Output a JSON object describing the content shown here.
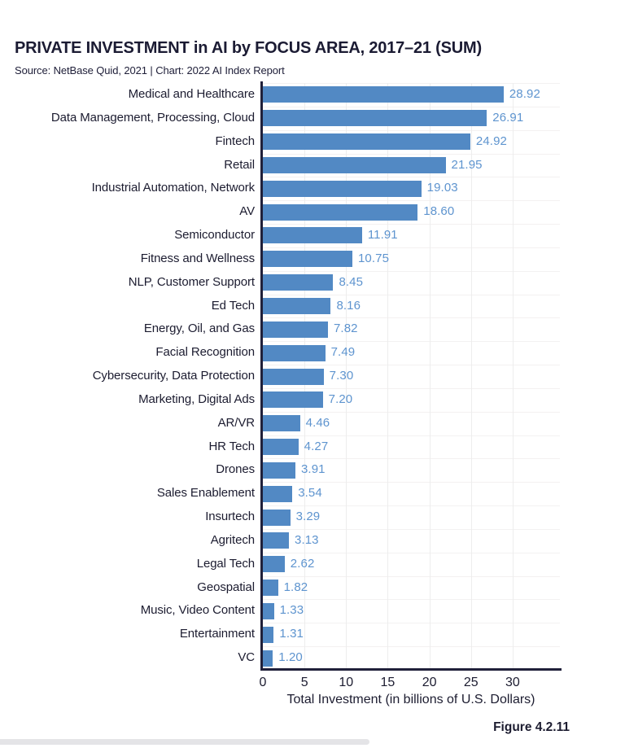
{
  "chart": {
    "title": "PRIVATE INVESTMENT in AI by FOCUS AREA, 2017–21 (SUM)",
    "source_line": "Source: NetBase Quid, 2021 | Chart: 2022 AI Index Report",
    "figure_label": "Figure 4.2.11"
  },
  "chart_data": {
    "type": "bar",
    "orientation": "horizontal",
    "title": "PRIVATE INVESTMENT in AI by FOCUS AREA, 2017–21 (SUM)",
    "categories": [
      "Medical and Healthcare",
      "Data Management, Processing, Cloud",
      "Fintech",
      "Retail",
      "Industrial Automation, Network",
      "AV",
      "Semiconductor",
      "Fitness and Wellness",
      "NLP, Customer Support",
      "Ed Tech",
      "Energy, Oil, and Gas",
      "Facial Recognition",
      "Cybersecurity, Data Protection",
      "Marketing, Digital Ads",
      "AR/VR",
      "HR Tech",
      "Drones",
      "Sales Enablement",
      "Insurtech",
      "Agritech",
      "Legal Tech",
      "Geospatial",
      "Music, Video Content",
      "Entertainment",
      "VC"
    ],
    "values": [
      28.92,
      26.91,
      24.92,
      21.95,
      19.03,
      18.6,
      11.91,
      10.75,
      8.45,
      8.16,
      7.82,
      7.49,
      7.3,
      7.2,
      4.46,
      4.27,
      3.91,
      3.54,
      3.29,
      3.13,
      2.62,
      1.82,
      1.33,
      1.31,
      1.2
    ],
    "value_labels": [
      "28.92",
      "26.91",
      "24.92",
      "21.95",
      "19.03",
      "18.60",
      "11.91",
      "10.75",
      "8.45",
      "8.16",
      "7.82",
      "7.49",
      "7.30",
      "7.20",
      "4.46",
      "4.27",
      "3.91",
      "3.54",
      "3.29",
      "3.13",
      "2.62",
      "1.82",
      "1.33",
      "1.31",
      "1.20"
    ],
    "xlabel": "Total Investment (in billions of U.S. Dollars)",
    "x_ticks": [
      0,
      5,
      10,
      15,
      20,
      25,
      30
    ],
    "xlim": [
      0,
      35.7
    ],
    "grid": true,
    "legend": "none",
    "bar_color": "#5289c4",
    "value_label_color": "#5e94cf",
    "axis_color": "#20203a",
    "text_color": "#1c1c30"
  }
}
